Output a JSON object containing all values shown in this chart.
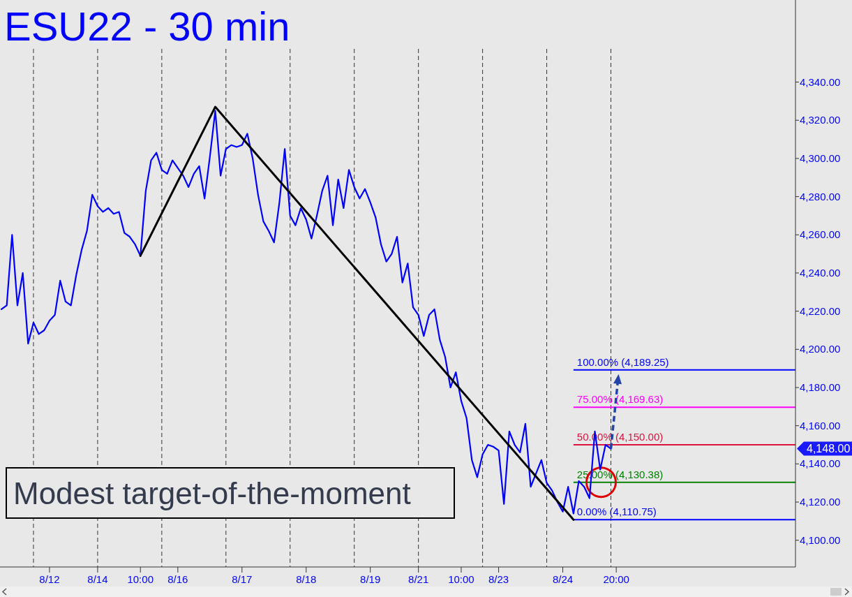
{
  "chart_data": {
    "type": "line",
    "title": "ESU22 - 30 min",
    "categories": [
      null,
      null,
      null,
      null,
      null,
      null,
      null,
      null,
      null,
      "8/12",
      null,
      null,
      null,
      null,
      null,
      null,
      null,
      null,
      "8/14",
      null,
      null,
      null,
      null,
      null,
      null,
      null,
      "10:00",
      null,
      null,
      null,
      null,
      null,
      null,
      "8/16",
      null,
      null,
      null,
      null,
      null,
      null,
      null,
      null,
      null,
      null,
      null,
      "8/17",
      null,
      null,
      null,
      null,
      null,
      null,
      null,
      null,
      null,
      null,
      null,
      "8/18",
      null,
      null,
      null,
      null,
      null,
      null,
      null,
      null,
      null,
      null,
      null,
      "8/19",
      null,
      null,
      null,
      null,
      null,
      null,
      null,
      null,
      "8/21",
      null,
      null,
      null,
      null,
      null,
      null,
      null,
      "10:00",
      null,
      null,
      null,
      null,
      null,
      null,
      "8/23",
      null,
      null,
      null,
      null,
      null,
      null,
      null,
      null,
      null,
      null,
      null,
      "8/24",
      null,
      null,
      null,
      null,
      null,
      null,
      null,
      null,
      null,
      "20:00",
      null,
      null,
      null,
      null,
      null,
      null,
      null,
      null,
      null,
      null,
      null,
      null,
      null,
      null,
      null,
      null,
      null,
      null,
      null,
      null,
      null,
      null,
      null,
      null,
      null,
      null,
      null,
      null,
      null,
      null,
      null,
      null,
      null
    ],
    "ylim": [
      4086,
      4383
    ],
    "yticks": [
      {
        "value": 4100,
        "label": "4,100.00"
      },
      {
        "value": 4120,
        "label": "4,120.00"
      },
      {
        "value": 4140,
        "label": "4,140.00"
      },
      {
        "value": 4160,
        "label": "4,160.00"
      },
      {
        "value": 4180,
        "label": "4,180.00"
      },
      {
        "value": 4200,
        "label": "4,200.00"
      },
      {
        "value": 4220,
        "label": "4,220.00"
      },
      {
        "value": 4240,
        "label": "4,240.00"
      },
      {
        "value": 4260,
        "label": "4,260.00"
      },
      {
        "value": 4280,
        "label": "4,280.00"
      },
      {
        "value": 4300,
        "label": "4,300.00"
      },
      {
        "value": 4320,
        "label": "4,320.00"
      },
      {
        "value": 4340,
        "label": "4,340.00"
      }
    ],
    "marker": "none",
    "series": [
      {
        "color": "#0000ff",
        "values": [
          4221,
          4223,
          4260,
          4223,
          4240,
          4203,
          4214,
          4208,
          4210,
          4215,
          4218,
          4236,
          4225,
          4223,
          4239,
          4252,
          4262,
          4281,
          4275,
          4272,
          4274,
          4271,
          4272,
          4261,
          4259,
          4255,
          4249,
          4283,
          4299,
          4303,
          4294,
          4292,
          4299,
          4295,
          4291,
          4285,
          4292,
          4296,
          4279,
          4301,
          4325,
          4291,
          4305,
          4307,
          4306,
          4307,
          4313,
          4300,
          4281,
          4267,
          4262,
          4256,
          4277,
          4305,
          4270,
          4265,
          4274,
          4268,
          4258,
          4270,
          4283,
          4291,
          4265,
          4289,
          4274,
          4294,
          4285,
          4279,
          4284,
          4277,
          4269,
          4255,
          4246,
          4250,
          4259,
          4235,
          4245,
          4222,
          4218,
          4207,
          4218,
          4221,
          4205,
          4196,
          4180,
          4188,
          4173,
          4164,
          4142,
          4133,
          4145,
          4150,
          4149,
          4147,
          4119,
          4157,
          4150,
          4146,
          4161,
          4128,
          4135,
          4142,
          4130,
          4126,
          4120,
          4115,
          4128,
          4114,
          4131,
          4128,
          4122,
          4157,
          4137,
          4150,
          4148,
          null,
          null,
          null,
          null,
          null,
          null,
          null,
          null,
          null,
          null,
          null,
          null,
          null,
          null,
          null,
          null,
          null,
          null,
          null,
          null,
          null,
          null,
          null,
          null,
          null,
          null,
          null,
          null,
          null,
          null,
          null,
          null,
          null,
          null
        ]
      },
      {
        "color": "#000000",
        "values": [
          null,
          null,
          null,
          null,
          null,
          null,
          null,
          null,
          null,
          null,
          null,
          null,
          null,
          null,
          null,
          null,
          null,
          null,
          null,
          null,
          null,
          null,
          null,
          null,
          null,
          null,
          4249,
          null,
          null,
          null,
          null,
          null,
          null,
          null,
          null,
          null,
          null,
          null,
          null,
          null,
          4327,
          null,
          null,
          null,
          null,
          null,
          null,
          null,
          null,
          null,
          null,
          null,
          null,
          null,
          null,
          null,
          null,
          null,
          null,
          null,
          null,
          null,
          null,
          null,
          null,
          null,
          null,
          null,
          null,
          null,
          null,
          null,
          null,
          null,
          null,
          null,
          null,
          null,
          null,
          null,
          null,
          null,
          null,
          null,
          null,
          null,
          null,
          null,
          null,
          null,
          null,
          null,
          null,
          null,
          null,
          null,
          null,
          null,
          null,
          null,
          null,
          null,
          null,
          null,
          null,
          null,
          null,
          4110.75,
          null,
          null,
          null,
          null,
          null,
          null,
          null,
          null,
          null,
          null,
          null,
          null,
          null,
          null,
          null,
          null,
          null,
          null,
          null,
          null,
          null,
          null,
          null,
          null,
          null,
          null,
          null,
          null,
          null,
          null,
          null,
          null,
          null,
          null,
          null,
          null,
          null,
          null,
          null,
          null,
          null
        ]
      }
    ],
    "ref_lines": [
      {
        "axis": "y",
        "value": 4110.75,
        "label": "0.00% (4,110.75)",
        "color": "#0000ff"
      },
      {
        "axis": "y",
        "value": 4130.38,
        "label": "25.00% (4,130.38)",
        "color": "#008000"
      },
      {
        "axis": "y",
        "value": 4150.0,
        "label": "50.00% (4,150.00)",
        "color": "#dc143c"
      },
      {
        "axis": "y",
        "value": 4169.63,
        "label": "75.00% (4,169.63)",
        "color": "#ff00ff"
      },
      {
        "axis": "y",
        "value": 4189.25,
        "label": "100.00% (4,189.25)",
        "color": "#0000ff"
      }
    ],
    "annotations": [
      "Modest target-of-the-moment",
      "4,148.00"
    ]
  }
}
